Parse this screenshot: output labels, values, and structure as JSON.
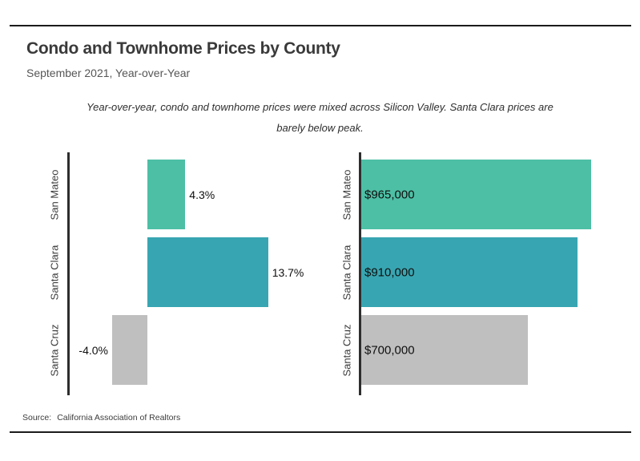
{
  "page": {
    "title": "Condo and Townhome Prices by County",
    "subtitle": "September 2021, Year-over-Year",
    "note_line1": "Year-over-year, condo and townhome prices were mixed across Silicon Valley. Santa Clara prices are",
    "note_line2": "barely below peak.",
    "source_label": "Source:",
    "source_text": "California Association of Realtors"
  },
  "colors": {
    "san_mateo": "#4dbfa5",
    "santa_clara": "#38a6b2",
    "santa_cruz": "#bfbfbf",
    "axis": "#2d2d2d",
    "rule": "#1b1b1b"
  },
  "chart_data": [
    {
      "type": "bar",
      "orientation": "horizontal",
      "name": "year-over-year-change",
      "categories": [
        "San Mateo",
        "Santa Clara",
        "Santa Cruz"
      ],
      "values": [
        4.3,
        13.7,
        -4.0
      ],
      "labels": [
        "4.3%",
        "13.7%",
        "-4.0%"
      ],
      "value_format": "percent",
      "x_baseline": 0,
      "label_position": "outside-end",
      "grid": "off",
      "legend": "none",
      "bar_colors": [
        "#4dbfa5",
        "#38a6b2",
        "#bfbfbf"
      ]
    },
    {
      "type": "bar",
      "orientation": "horizontal",
      "name": "median-price",
      "categories": [
        "San Mateo",
        "Santa Clara",
        "Santa Cruz"
      ],
      "values": [
        965000,
        910000,
        700000
      ],
      "labels": [
        "$965,000",
        "$910,000",
        "$700,000"
      ],
      "value_format": "usd",
      "x_baseline": 0,
      "label_position": "inside-start",
      "grid": "off",
      "legend": "none",
      "bar_colors": [
        "#4dbfa5",
        "#38a6b2",
        "#bfbfbf"
      ]
    }
  ]
}
